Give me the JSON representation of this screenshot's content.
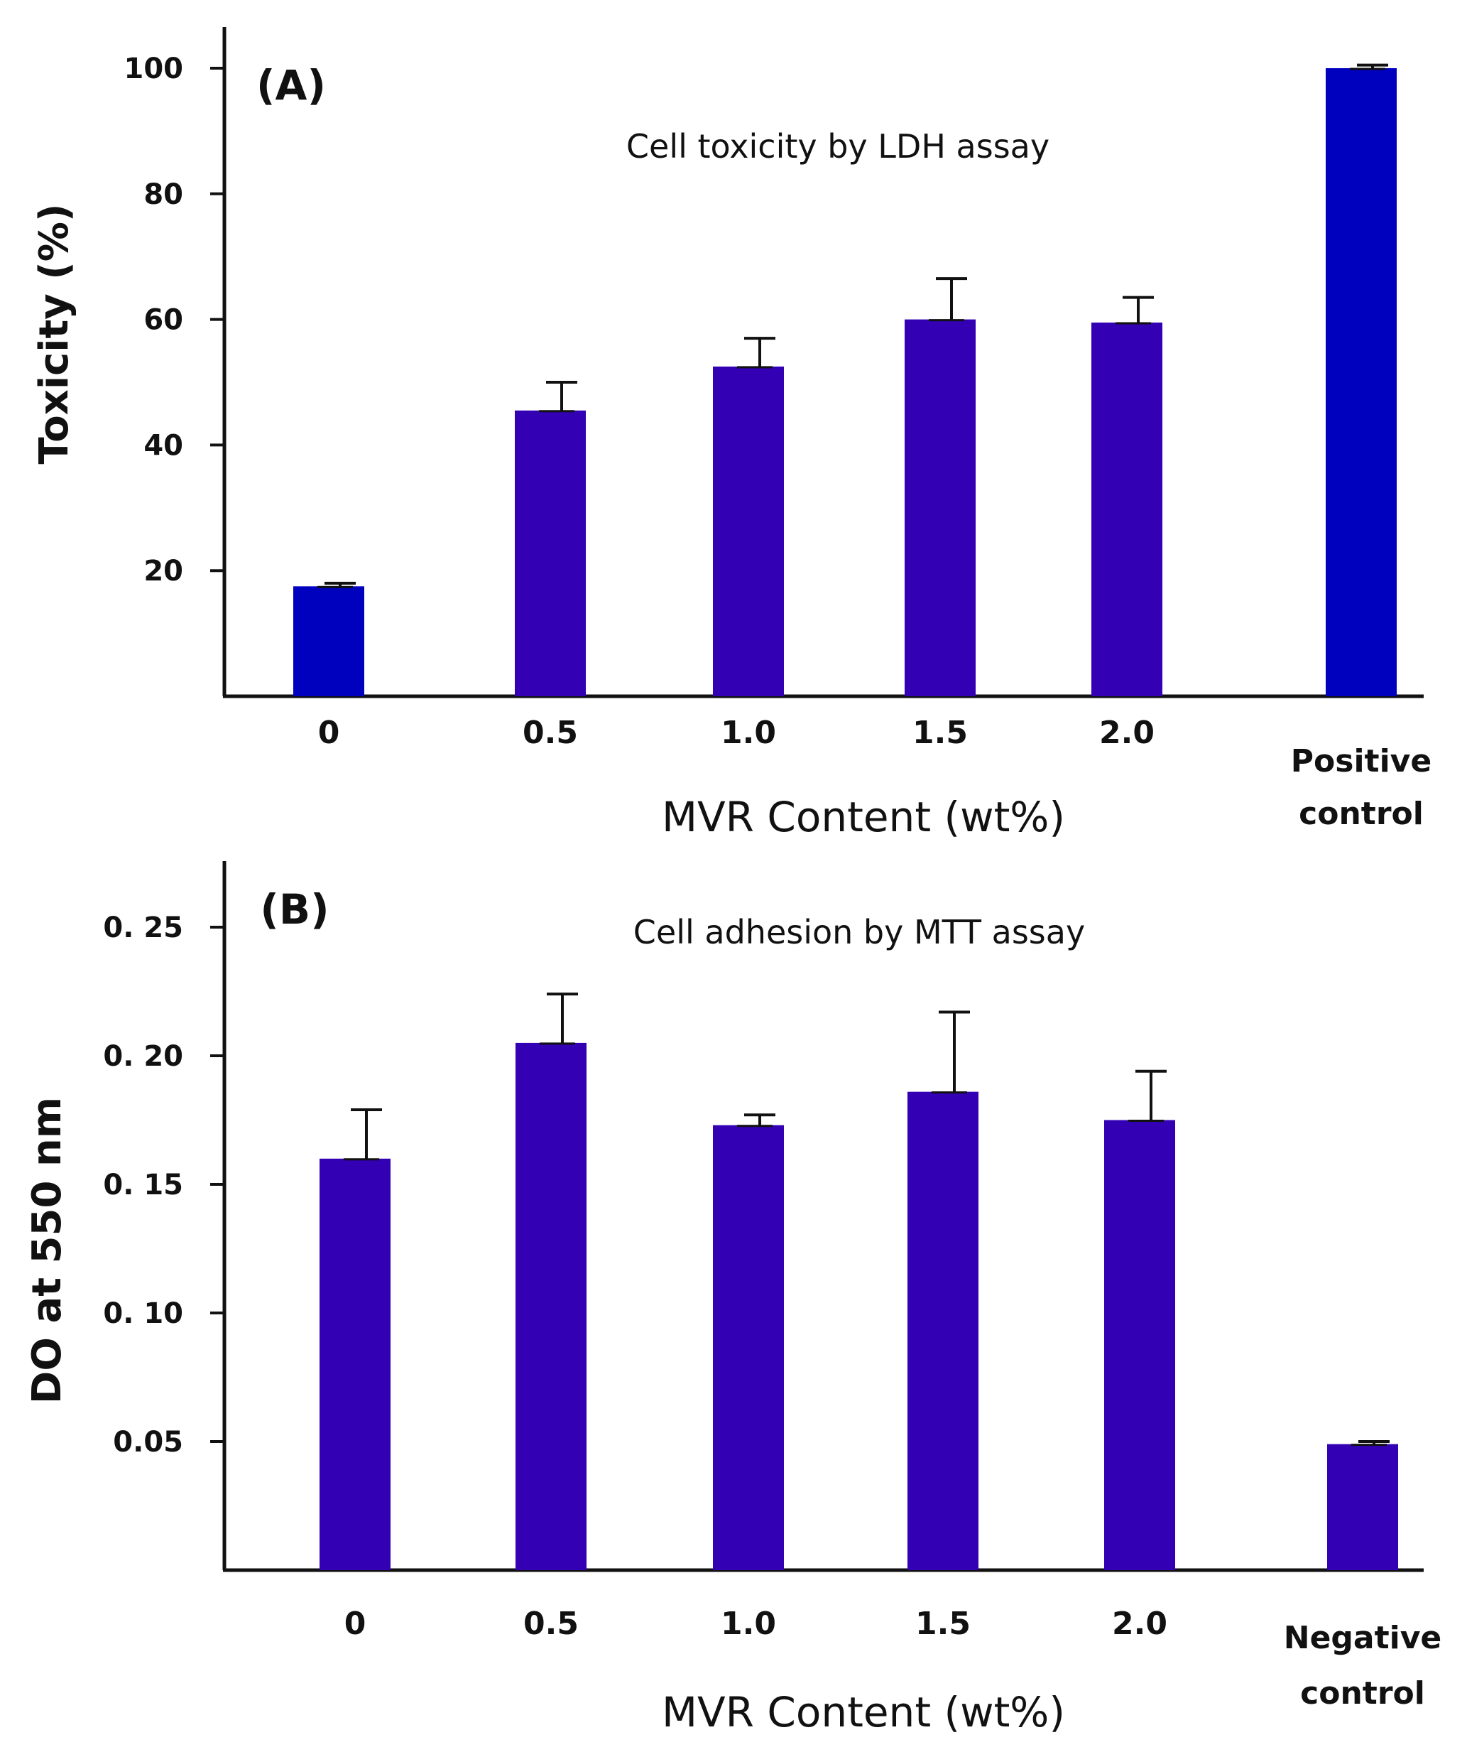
{
  "chart_data": [
    {
      "type": "bar",
      "panel_label": "(A)",
      "title": "Cell toxicity by LDH assay",
      "xlabel": "MVR Content (wt%)",
      "ylabel": "Toxicity (%)",
      "categories": [
        "0",
        "0.5",
        "1.0",
        "1.5",
        "2.0",
        "Positive control"
      ],
      "values": [
        17.5,
        45.5,
        52.5,
        60,
        59.5,
        100
      ],
      "error": [
        0.5,
        4.5,
        4.5,
        6.5,
        4.0,
        0.5
      ],
      "ylim": [
        0,
        100
      ],
      "yticks": [
        20,
        40,
        60,
        80,
        100
      ],
      "ytick_labels": [
        "20",
        "40",
        "60",
        "80",
        "100"
      ],
      "bar_colors": [
        "#0000bf",
        "#3300b3",
        "#3300b3",
        "#3300b3",
        "#3300b3",
        "#0000bf"
      ],
      "grid": false
    },
    {
      "type": "bar",
      "panel_label": "(B)",
      "title": "Cell adhesion by MTT assay",
      "xlabel": "MVR Content (wt%)",
      "ylabel": "DO at 550 nm",
      "categories": [
        "0",
        "0.5",
        "1.0",
        "1.5",
        "2.0",
        "Negative control"
      ],
      "values": [
        0.16,
        0.205,
        0.173,
        0.186,
        0.175,
        0.049
      ],
      "error": [
        0.019,
        0.019,
        0.004,
        0.031,
        0.019,
        0.001
      ],
      "ylim": [
        0,
        0.25
      ],
      "yticks": [
        0.05,
        0.1,
        0.15,
        0.2,
        0.25
      ],
      "ytick_labels": [
        "0.05",
        "0. 10",
        "0. 15",
        "0. 20",
        "0. 25"
      ],
      "bar_colors": [
        "#3300b3",
        "#3300b3",
        "#3300b3",
        "#3300b3",
        "#3300b3",
        "#3300b3"
      ],
      "grid": false
    }
  ]
}
